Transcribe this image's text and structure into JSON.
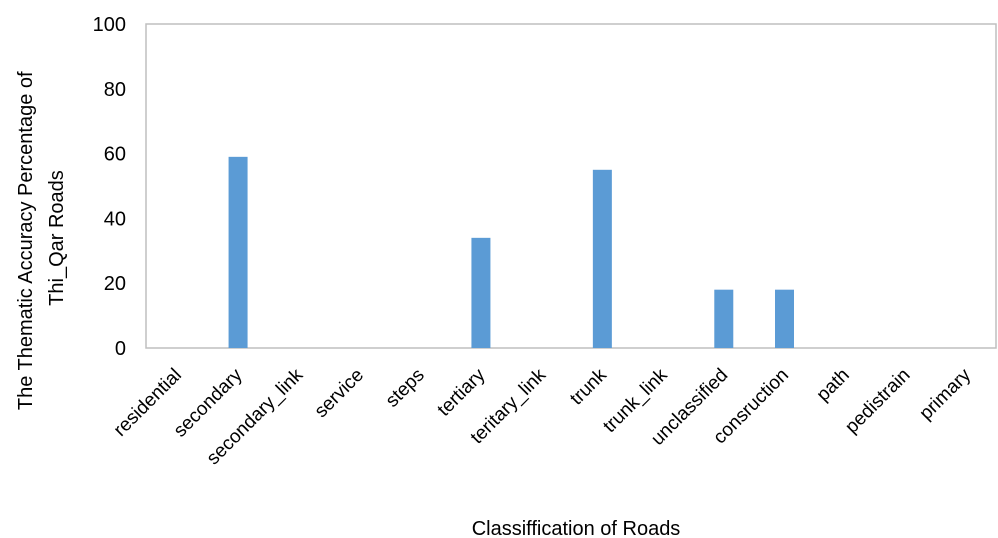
{
  "chart_data": {
    "type": "bar",
    "categories": [
      "residential",
      "secondary",
      "secondary_link",
      "service",
      "steps",
      "tertiary",
      "teritary_link",
      "trunk",
      "trunk_link",
      "unclassified",
      "consruction",
      "path",
      "pedistrain",
      "primary"
    ],
    "values": [
      0,
      59,
      0,
      0,
      0,
      34,
      0,
      55,
      0,
      18,
      18,
      0,
      0,
      0
    ],
    "xlabel": "Classiffication of Roads",
    "ylabel": [
      "The Thematic Accuracy Percentage of",
      "Thi_Qar Roads"
    ],
    "ylim": [
      0,
      100
    ],
    "yticks": [
      0,
      20,
      40,
      60,
      80,
      100
    ],
    "bar_color": "#5b9bd5",
    "axis_color": "#bfbfbf",
    "grid": false,
    "legend": "none"
  }
}
